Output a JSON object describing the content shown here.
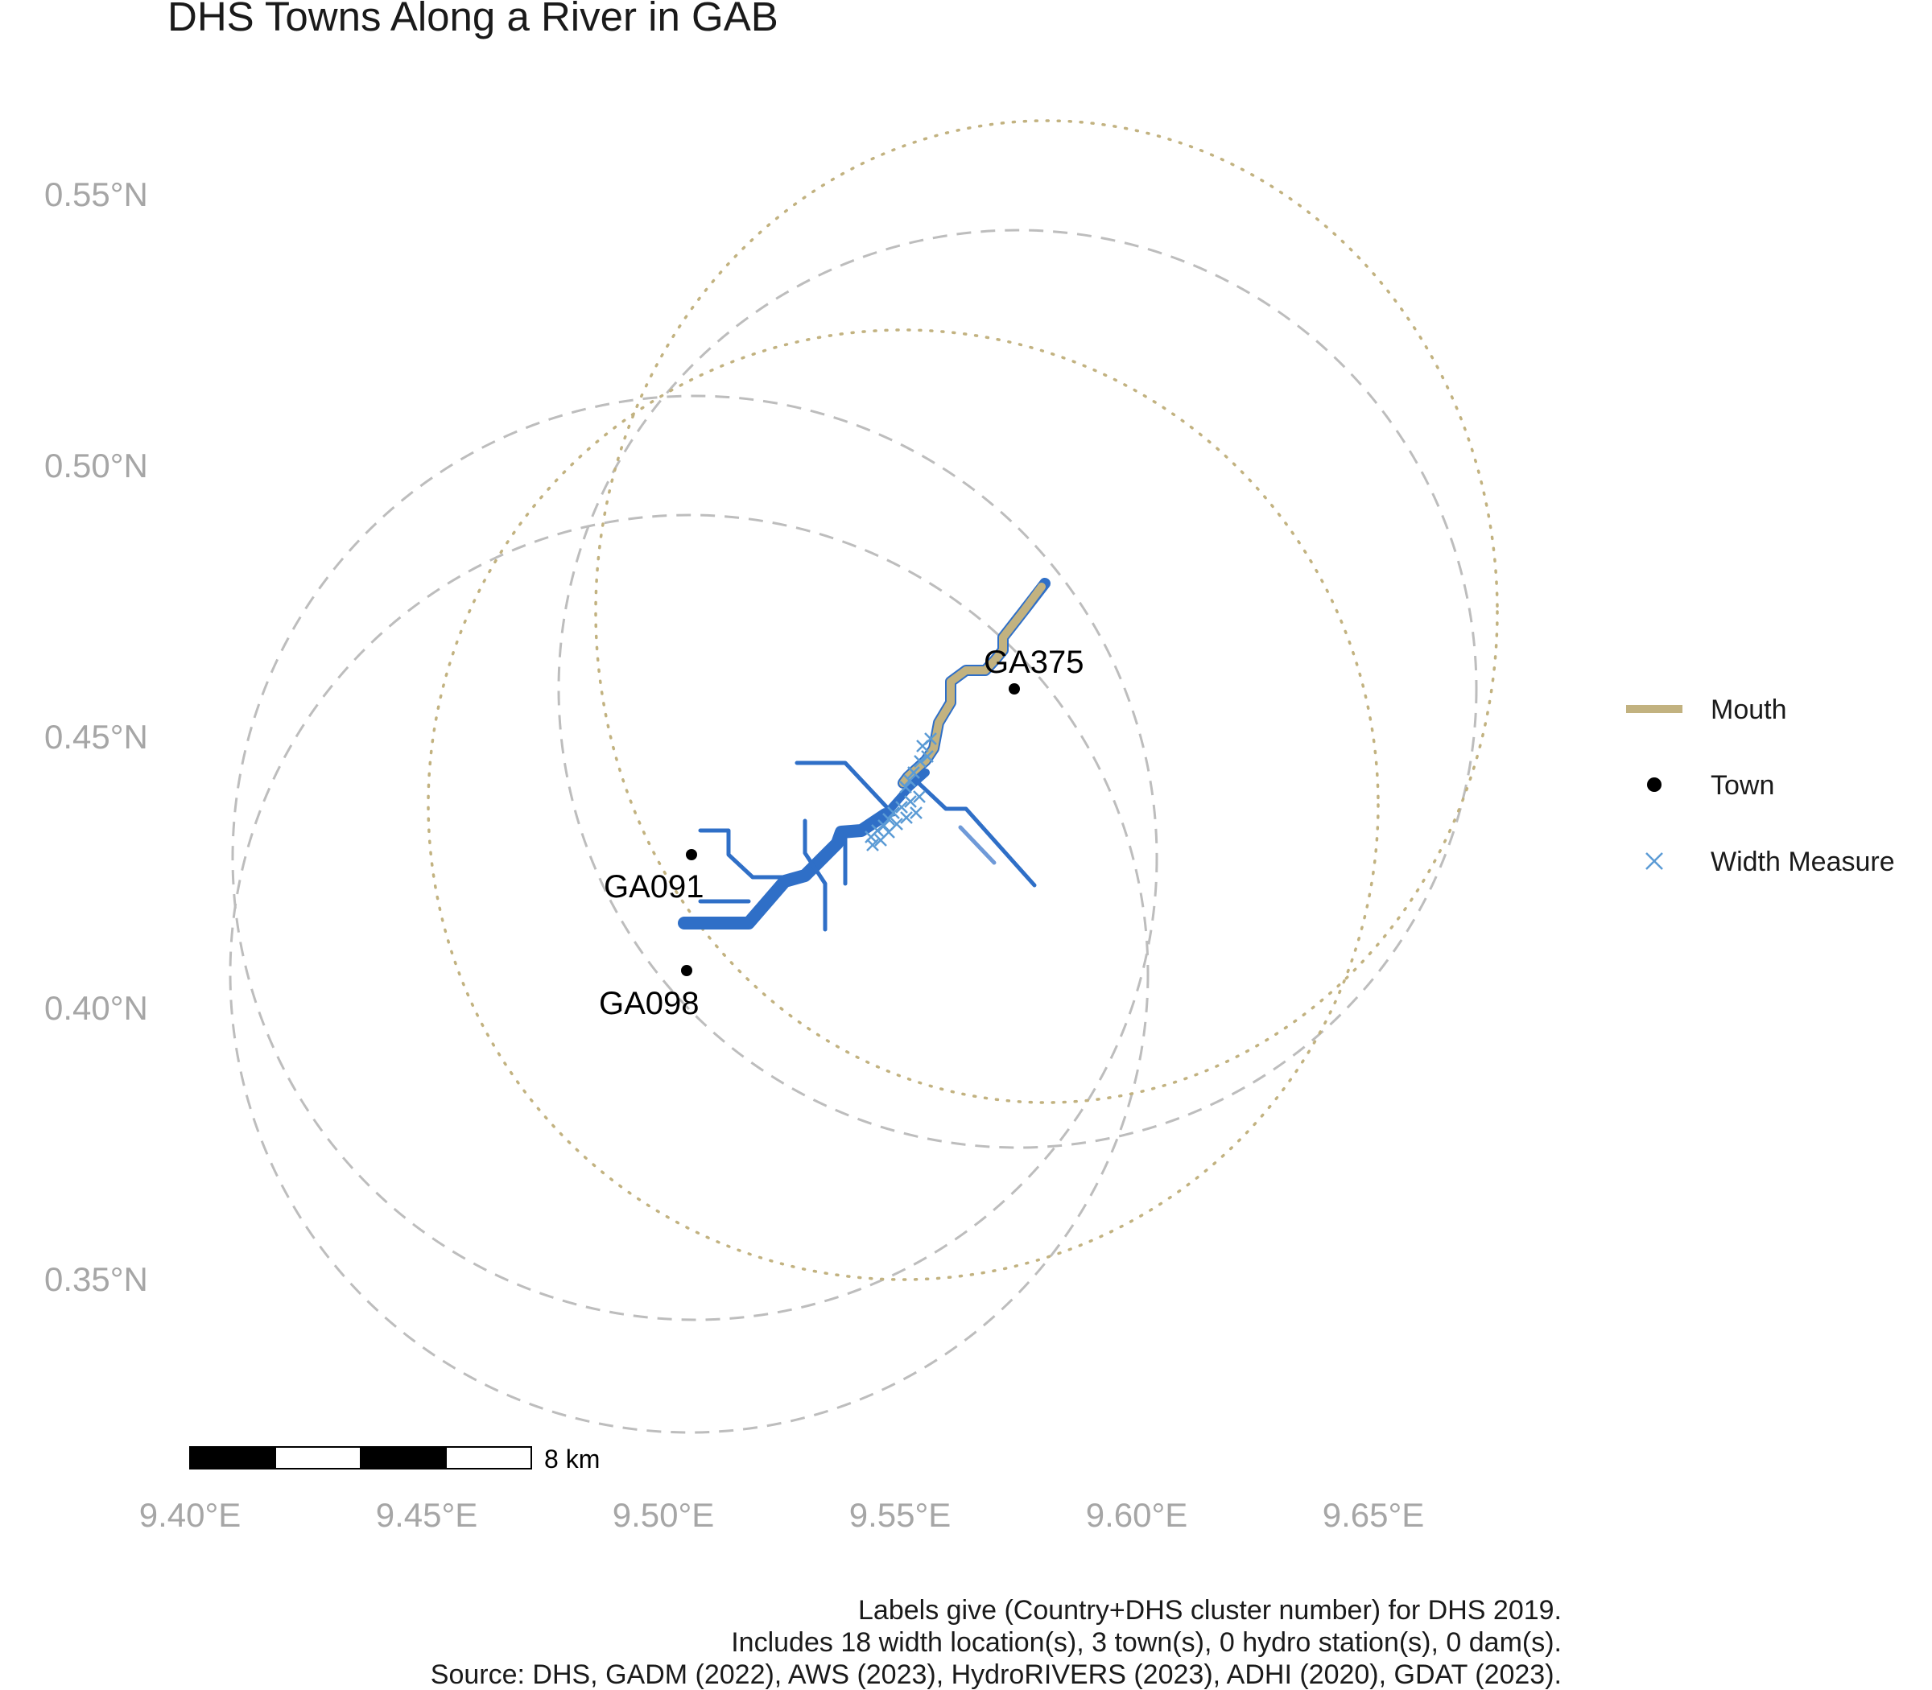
{
  "title": "DHS Towns Along a River in GAB",
  "axes": {
    "x_ticks": [
      "9.40°E",
      "9.45°E",
      "9.50°E",
      "9.55°E",
      "9.60°E",
      "9.65°E"
    ],
    "y_ticks": [
      "0.55°N",
      "0.50°N",
      "0.45°N",
      "0.40°N",
      "0.35°N"
    ]
  },
  "legend": {
    "position": "right",
    "items": [
      {
        "label": "Mouth",
        "symbol": "line",
        "color": "#c2b280"
      },
      {
        "label": "Town",
        "symbol": "point",
        "color": "#000000"
      },
      {
        "label": "Width Measure",
        "symbol": "cross",
        "color": "#5b9bd5"
      }
    ]
  },
  "towns": [
    {
      "id": "GA375",
      "label": "GA375"
    },
    {
      "id": "GA091",
      "label": "GA091"
    },
    {
      "id": "GA098",
      "label": "GA098"
    }
  ],
  "scale_bar": {
    "label": "8 km"
  },
  "caption": [
    "Labels give (Country+DHS cluster number) for DHS 2019.",
    "Includes 18 width location(s), 3 town(s), 0 hydro station(s), 0 dam(s).",
    "Source: DHS, GADM (2022), AWS (2023), HydroRIVERS (2023), ADHI (2020), GDAT (2023)."
  ],
  "colors": {
    "river": "#2f6fc7",
    "mouth": "#c2b280",
    "buffer_ring": "#bdbdbd",
    "width_measure": "#5b9bd5",
    "axis_text": "#a6a6a6"
  }
}
